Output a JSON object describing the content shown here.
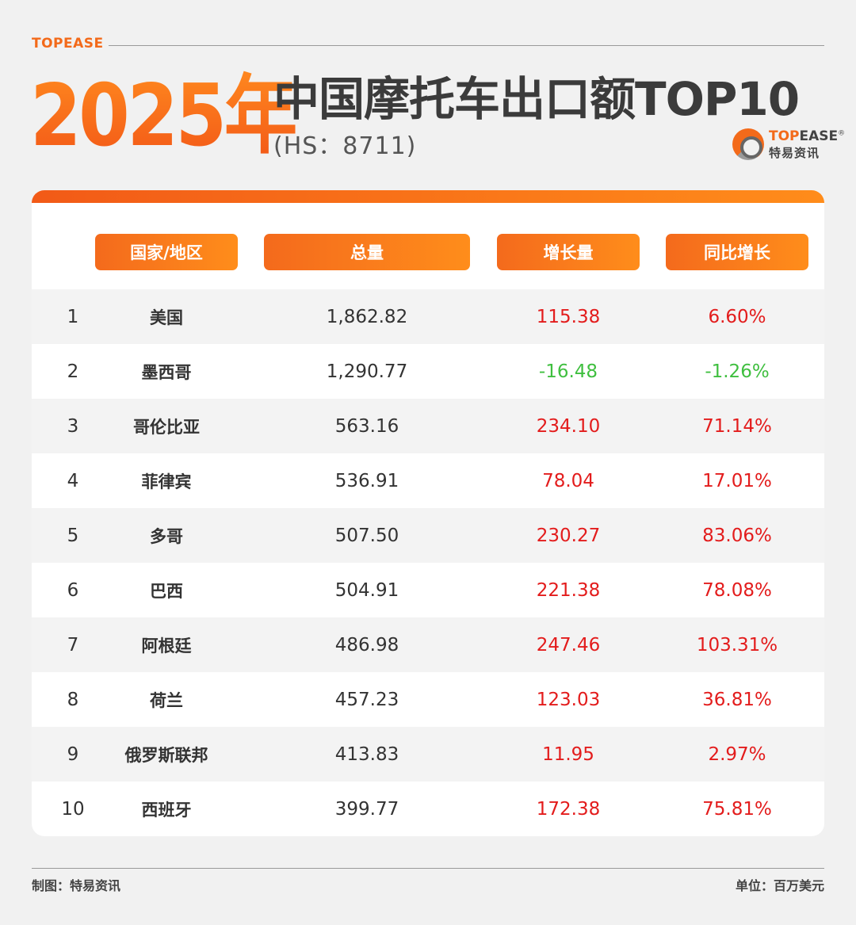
{
  "brand_tag": "TOPEASE",
  "title": {
    "year": "2025年",
    "main": "中国摩托车出口额TOP10",
    "subtitle": "(HS：8711)"
  },
  "logo": {
    "name_en_orange": "TOP",
    "name_en_rest": "EASE",
    "registered": "®",
    "name_cn": "特易资讯"
  },
  "colors": {
    "accent": "#f36a1a",
    "positive": "#e31c1c",
    "negative": "#3fbf3f"
  },
  "chart_data": {
    "type": "table",
    "columns": [
      "国家/地区",
      "总量",
      "增长量",
      "同比增长"
    ],
    "rows": [
      {
        "rank": "1",
        "country": "美国",
        "total": "1,862.82",
        "growth": "115.38",
        "yoy": "6.60%",
        "sign": "pos"
      },
      {
        "rank": "2",
        "country": "墨西哥",
        "total": "1,290.77",
        "growth": "-16.48",
        "yoy": "-1.26%",
        "sign": "neg"
      },
      {
        "rank": "3",
        "country": "哥伦比亚",
        "total": "563.16",
        "growth": "234.10",
        "yoy": "71.14%",
        "sign": "pos"
      },
      {
        "rank": "4",
        "country": "菲律宾",
        "total": "536.91",
        "growth": "78.04",
        "yoy": "17.01%",
        "sign": "pos"
      },
      {
        "rank": "5",
        "country": "多哥",
        "total": "507.50",
        "growth": "230.27",
        "yoy": "83.06%",
        "sign": "pos"
      },
      {
        "rank": "6",
        "country": "巴西",
        "total": "504.91",
        "growth": "221.38",
        "yoy": "78.08%",
        "sign": "pos"
      },
      {
        "rank": "7",
        "country": "阿根廷",
        "total": "486.98",
        "growth": "247.46",
        "yoy": "103.31%",
        "sign": "pos"
      },
      {
        "rank": "8",
        "country": "荷兰",
        "total": "457.23",
        "growth": "123.03",
        "yoy": "36.81%",
        "sign": "pos"
      },
      {
        "rank": "9",
        "country": "俄罗斯联邦",
        "total": "413.83",
        "growth": "11.95",
        "yoy": "2.97%",
        "sign": "pos"
      },
      {
        "rank": "10",
        "country": "西班牙",
        "total": "399.77",
        "growth": "172.38",
        "yoy": "75.81%",
        "sign": "pos"
      }
    ]
  },
  "footer": {
    "source": "制图：特易资讯",
    "unit": "单位：百万美元"
  }
}
